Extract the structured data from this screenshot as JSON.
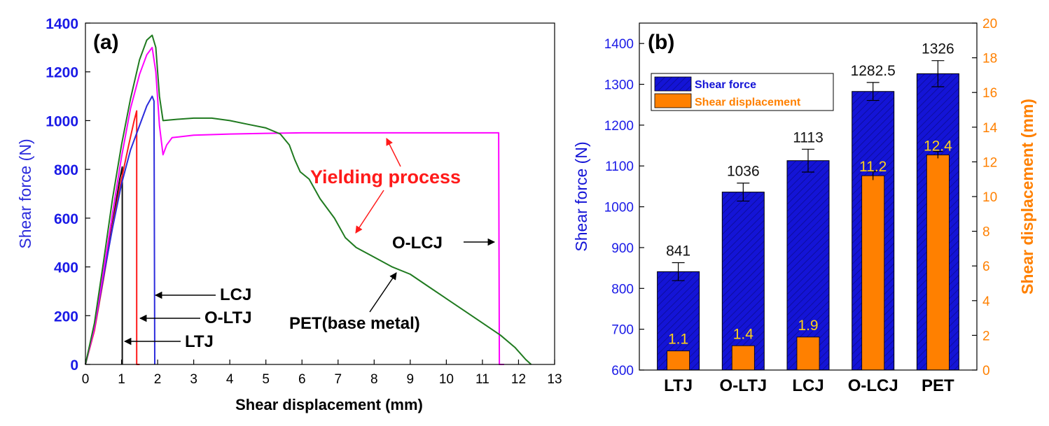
{
  "chart_data": [
    {
      "panel_label": "(a)",
      "type": "line",
      "xlabel": "Shear displacement (mm)",
      "ylabel": "Shear force (N)",
      "xlim": [
        0,
        13
      ],
      "ylim": [
        0,
        1400
      ],
      "x_ticks": [
        0,
        1,
        2,
        3,
        4,
        5,
        6,
        7,
        8,
        9,
        10,
        11,
        12,
        13
      ],
      "y_ticks": [
        0,
        200,
        400,
        600,
        800,
        1000,
        1200,
        1400
      ],
      "grid": false,
      "series": [
        {
          "name": "LTJ",
          "color": "#111111",
          "points": [
            [
              0,
              0
            ],
            [
              0.25,
              160
            ],
            [
              0.5,
              370
            ],
            [
              0.75,
              580
            ],
            [
              0.95,
              760
            ],
            [
              1.02,
              810
            ],
            [
              1.02,
              0
            ]
          ]
        },
        {
          "name": "O-LTJ",
          "color": "#ff1a1a",
          "points": [
            [
              0,
              0
            ],
            [
              0.25,
              140
            ],
            [
              0.5,
              350
            ],
            [
              0.75,
              570
            ],
            [
              1.0,
              760
            ],
            [
              1.2,
              900
            ],
            [
              1.35,
              1000
            ],
            [
              1.42,
              1040
            ],
            [
              1.42,
              0
            ],
            [
              1.5,
              0
            ]
          ]
        },
        {
          "name": "LCJ",
          "color": "#2b2bdc",
          "points": [
            [
              0,
              0
            ],
            [
              0.25,
              150
            ],
            [
              0.5,
              360
            ],
            [
              0.75,
              560
            ],
            [
              1.0,
              740
            ],
            [
              1.25,
              880
            ],
            [
              1.5,
              980
            ],
            [
              1.7,
              1060
            ],
            [
              1.85,
              1100
            ],
            [
              1.9,
              1080
            ],
            [
              1.92,
              0
            ]
          ]
        },
        {
          "name": "O-LCJ",
          "color": "#ff00ff",
          "points": [
            [
              0,
              0
            ],
            [
              0.25,
              150
            ],
            [
              0.5,
              380
            ],
            [
              0.75,
              620
            ],
            [
              1.0,
              850
            ],
            [
              1.25,
              1050
            ],
            [
              1.5,
              1190
            ],
            [
              1.7,
              1270
            ],
            [
              1.85,
              1300
            ],
            [
              1.95,
              1200
            ],
            [
              2.05,
              980
            ],
            [
              2.15,
              860
            ],
            [
              2.25,
              900
            ],
            [
              2.4,
              930
            ],
            [
              3,
              940
            ],
            [
              4,
              945
            ],
            [
              5,
              948
            ],
            [
              6,
              950
            ],
            [
              7,
              950
            ],
            [
              8,
              950
            ],
            [
              9,
              950
            ],
            [
              10,
              950
            ],
            [
              11,
              950
            ],
            [
              11.45,
              950
            ],
            [
              11.47,
              0
            ],
            [
              11.6,
              0
            ]
          ]
        },
        {
          "name": "PET(base metal)",
          "color": "#1f7a1f",
          "points": [
            [
              0,
              0
            ],
            [
              0.25,
              170
            ],
            [
              0.5,
              420
            ],
            [
              0.75,
              680
            ],
            [
              1.0,
              900
            ],
            [
              1.25,
              1090
            ],
            [
              1.5,
              1250
            ],
            [
              1.7,
              1330
            ],
            [
              1.85,
              1350
            ],
            [
              1.95,
              1300
            ],
            [
              2.05,
              1100
            ],
            [
              2.15,
              1000
            ],
            [
              2.5,
              1005
            ],
            [
              3,
              1010
            ],
            [
              3.5,
              1010
            ],
            [
              4,
              1000
            ],
            [
              4.5,
              985
            ],
            [
              5,
              970
            ],
            [
              5.4,
              945
            ],
            [
              5.65,
              900
            ],
            [
              5.8,
              840
            ],
            [
              5.95,
              790
            ],
            [
              6.2,
              760
            ],
            [
              6.5,
              680
            ],
            [
              6.9,
              600
            ],
            [
              7.2,
              520
            ],
            [
              7.5,
              480
            ],
            [
              8,
              440
            ],
            [
              8.5,
              400
            ],
            [
              9,
              370
            ],
            [
              9.5,
              320
            ],
            [
              10,
              270
            ],
            [
              10.5,
              220
            ],
            [
              11,
              170
            ],
            [
              11.5,
              120
            ],
            [
              11.9,
              70
            ],
            [
              12.2,
              20
            ],
            [
              12.35,
              0
            ]
          ]
        }
      ],
      "annotations": [
        {
          "text": "Yielding process",
          "color": "#ff1a1a"
        },
        {
          "text": "O-LCJ"
        },
        {
          "text": "LCJ"
        },
        {
          "text": "O-LTJ"
        },
        {
          "text": "LTJ"
        },
        {
          "text": "PET(base metal)"
        }
      ]
    },
    {
      "panel_label": "(b)",
      "type": "bar",
      "categories": [
        "LTJ",
        "O-LTJ",
        "LCJ",
        "O-LCJ",
        "PET"
      ],
      "ylabel": "Shear force (N)",
      "y2label": "Shear displacement (mm)",
      "ylim": [
        600,
        1450
      ],
      "y2lim": [
        0,
        20
      ],
      "y_ticks": [
        600,
        700,
        800,
        900,
        1000,
        1100,
        1200,
        1300,
        1400
      ],
      "y2_ticks": [
        0,
        2,
        4,
        6,
        8,
        10,
        12,
        14,
        16,
        18,
        20
      ],
      "grid": false,
      "legend_position": "top-left",
      "series": [
        {
          "name": "Shear force",
          "axis": "left",
          "color": "#1414d6",
          "values": [
            841,
            1036,
            1113,
            1282.5,
            1326
          ],
          "errors": [
            22,
            22,
            28,
            22,
            32
          ],
          "labels": [
            "841",
            "1036",
            "1113",
            "1282.5",
            "1326"
          ]
        },
        {
          "name": "Shear displacement",
          "axis": "right",
          "color": "#ff8000",
          "values": [
            1.1,
            1.4,
            1.9,
            11.2,
            12.4
          ],
          "errors": [
            0,
            0,
            0,
            0.25,
            0.2
          ],
          "labels": [
            "1.1",
            "1.4",
            "1.9",
            "11.2",
            "12.4"
          ]
        }
      ]
    }
  ]
}
